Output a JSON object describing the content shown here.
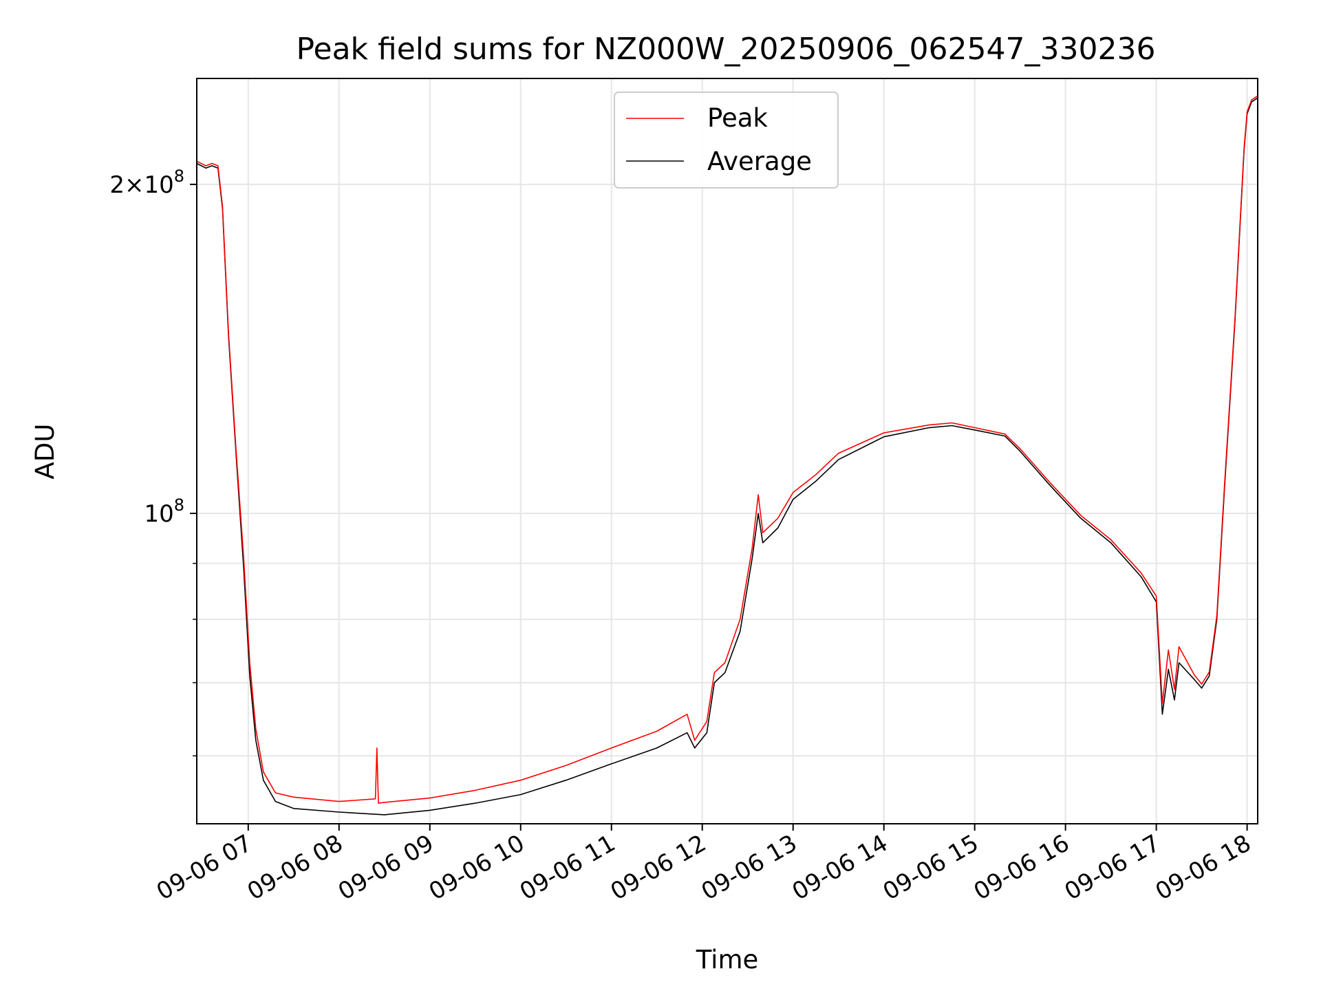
{
  "chart_data": {
    "type": "line",
    "title": "Peak field sums for NZ000W_20250906_062547_330236",
    "xlabel": "Time",
    "ylabel": "ADU",
    "y_scale": "log",
    "ylim": [
      52000000,
      250000000
    ],
    "xlim": [
      "2025-09-06 06:26",
      "2025-09-06 18:07"
    ],
    "grid": true,
    "legend_position": "upper center",
    "x_ticks": [
      {
        "t": "2025-09-06 07:00",
        "label": "09-06 07"
      },
      {
        "t": "2025-09-06 08:00",
        "label": "09-06 08"
      },
      {
        "t": "2025-09-06 09:00",
        "label": "09-06 09"
      },
      {
        "t": "2025-09-06 10:00",
        "label": "09-06 10"
      },
      {
        "t": "2025-09-06 11:00",
        "label": "09-06 11"
      },
      {
        "t": "2025-09-06 12:00",
        "label": "09-06 12"
      },
      {
        "t": "2025-09-06 13:00",
        "label": "09-06 13"
      },
      {
        "t": "2025-09-06 14:00",
        "label": "09-06 14"
      },
      {
        "t": "2025-09-06 15:00",
        "label": "09-06 15"
      },
      {
        "t": "2025-09-06 16:00",
        "label": "09-06 16"
      },
      {
        "t": "2025-09-06 17:00",
        "label": "09-06 17"
      },
      {
        "t": "2025-09-06 18:00",
        "label": "09-06 18"
      }
    ],
    "y_major_ticks": [
      {
        "value": 100000000,
        "label": "10",
        "exp": "8"
      },
      {
        "value": 200000000,
        "label": "2×10",
        "exp": "8"
      }
    ],
    "y_minor_gridlines": [
      60000000,
      70000000,
      80000000,
      90000000
    ],
    "series": [
      {
        "name": "Average",
        "color": "#000000",
        "points": [
          [
            "2025-09-06 06:26",
            209000000
          ],
          [
            "2025-09-06 06:32",
            207000000
          ],
          [
            "2025-09-06 06:36",
            208000000
          ],
          [
            "2025-09-06 06:40",
            207000000
          ],
          [
            "2025-09-06 06:43",
            190000000
          ],
          [
            "2025-09-06 06:47",
            145000000
          ],
          [
            "2025-09-06 06:52",
            113000000
          ],
          [
            "2025-09-06 06:57",
            89000000
          ],
          [
            "2025-09-06 07:01",
            71000000
          ],
          [
            "2025-09-06 07:05",
            62000000
          ],
          [
            "2025-09-06 07:10",
            57000000
          ],
          [
            "2025-09-06 07:18",
            54500000
          ],
          [
            "2025-09-06 07:30",
            53700000
          ],
          [
            "2025-09-06 08:00",
            53300000
          ],
          [
            "2025-09-06 08:30",
            53000000
          ],
          [
            "2025-09-06 09:00",
            53500000
          ],
          [
            "2025-09-06 09:30",
            54300000
          ],
          [
            "2025-09-06 10:00",
            55300000
          ],
          [
            "2025-09-06 10:30",
            57000000
          ],
          [
            "2025-09-06 11:00",
            59000000
          ],
          [
            "2025-09-06 11:30",
            61000000
          ],
          [
            "2025-09-06 11:50",
            63000000
          ],
          [
            "2025-09-06 11:55",
            61000000
          ],
          [
            "2025-09-06 12:03",
            63000000
          ],
          [
            "2025-09-06 12:08",
            70000000
          ],
          [
            "2025-09-06 12:15",
            71500000
          ],
          [
            "2025-09-06 12:25",
            78000000
          ],
          [
            "2025-09-06 12:33",
            91000000
          ],
          [
            "2025-09-06 12:37",
            100000000
          ],
          [
            "2025-09-06 12:40",
            94000000
          ],
          [
            "2025-09-06 12:50",
            97000000
          ],
          [
            "2025-09-06 13:00",
            103000000
          ],
          [
            "2025-09-06 13:15",
            107000000
          ],
          [
            "2025-09-06 13:30",
            112000000
          ],
          [
            "2025-09-06 14:00",
            117500000
          ],
          [
            "2025-09-06 14:30",
            119800000
          ],
          [
            "2025-09-06 14:45",
            120300000
          ],
          [
            "2025-09-06 15:00",
            119200000
          ],
          [
            "2025-09-06 15:20",
            117700000
          ],
          [
            "2025-09-06 15:30",
            114000000
          ],
          [
            "2025-09-06 15:50",
            106000000
          ],
          [
            "2025-09-06 16:10",
            99000000
          ],
          [
            "2025-09-06 16:30",
            94000000
          ],
          [
            "2025-09-06 16:50",
            87500000
          ],
          [
            "2025-09-06 17:00",
            83000000
          ],
          [
            "2025-09-06 17:04",
            65500000
          ],
          [
            "2025-09-06 17:08",
            72000000
          ],
          [
            "2025-09-06 17:12",
            67500000
          ],
          [
            "2025-09-06 17:15",
            73000000
          ],
          [
            "2025-09-06 17:25",
            70500000
          ],
          [
            "2025-09-06 17:30",
            69200000
          ],
          [
            "2025-09-06 17:35",
            71000000
          ],
          [
            "2025-09-06 17:40",
            80000000
          ],
          [
            "2025-09-06 17:45",
            105000000
          ],
          [
            "2025-09-06 17:52",
            150000000
          ],
          [
            "2025-09-06 17:58",
            215000000
          ],
          [
            "2025-09-06 18:00",
            232000000
          ],
          [
            "2025-09-06 18:03",
            238000000
          ],
          [
            "2025-09-06 18:07",
            240000000
          ]
        ]
      },
      {
        "name": "Peak",
        "color": "#ff0000",
        "points": [
          [
            "2025-09-06 06:26",
            210000000
          ],
          [
            "2025-09-06 06:32",
            208000000
          ],
          [
            "2025-09-06 06:36",
            209000000
          ],
          [
            "2025-09-06 06:40",
            208000000
          ],
          [
            "2025-09-06 06:43",
            191000000
          ],
          [
            "2025-09-06 06:47",
            146000000
          ],
          [
            "2025-09-06 06:52",
            114000000
          ],
          [
            "2025-09-06 06:57",
            91000000
          ],
          [
            "2025-09-06 07:01",
            73000000
          ],
          [
            "2025-09-06 07:05",
            63500000
          ],
          [
            "2025-09-06 07:10",
            58000000
          ],
          [
            "2025-09-06 07:18",
            55500000
          ],
          [
            "2025-09-06 07:30",
            55000000
          ],
          [
            "2025-09-06 08:00",
            54500000
          ],
          [
            "2025-09-06 08:24",
            54800000
          ],
          [
            "2025-09-06 08:25",
            61000000
          ],
          [
            "2025-09-06 08:26",
            54300000
          ],
          [
            "2025-09-06 08:30",
            54400000
          ],
          [
            "2025-09-06 09:00",
            54900000
          ],
          [
            "2025-09-06 09:30",
            55800000
          ],
          [
            "2025-09-06 10:00",
            57000000
          ],
          [
            "2025-09-06 10:30",
            58800000
          ],
          [
            "2025-09-06 11:00",
            61000000
          ],
          [
            "2025-09-06 11:30",
            63200000
          ],
          [
            "2025-09-06 11:50",
            65500000
          ],
          [
            "2025-09-06 11:55",
            62000000
          ],
          [
            "2025-09-06 12:03",
            64500000
          ],
          [
            "2025-09-06 12:08",
            71500000
          ],
          [
            "2025-09-06 12:15",
            73000000
          ],
          [
            "2025-09-06 12:25",
            80000000
          ],
          [
            "2025-09-06 12:33",
            93000000
          ],
          [
            "2025-09-06 12:37",
            104000000
          ],
          [
            "2025-09-06 12:40",
            96000000
          ],
          [
            "2025-09-06 12:50",
            99000000
          ],
          [
            "2025-09-06 13:00",
            104500000
          ],
          [
            "2025-09-06 13:15",
            108500000
          ],
          [
            "2025-09-06 13:30",
            113500000
          ],
          [
            "2025-09-06 14:00",
            118500000
          ],
          [
            "2025-09-06 14:30",
            120500000
          ],
          [
            "2025-09-06 14:45",
            121000000
          ],
          [
            "2025-09-06 15:00",
            119800000
          ],
          [
            "2025-09-06 15:20",
            118200000
          ],
          [
            "2025-09-06 15:30",
            114600000
          ],
          [
            "2025-09-06 15:50",
            106600000
          ],
          [
            "2025-09-06 16:10",
            99600000
          ],
          [
            "2025-09-06 16:30",
            94600000
          ],
          [
            "2025-09-06 16:50",
            88200000
          ],
          [
            "2025-09-06 17:00",
            84000000
          ],
          [
            "2025-09-06 17:04",
            67000000
          ],
          [
            "2025-09-06 17:08",
            75000000
          ],
          [
            "2025-09-06 17:12",
            69000000
          ],
          [
            "2025-09-06 17:15",
            75500000
          ],
          [
            "2025-09-06 17:25",
            71200000
          ],
          [
            "2025-09-06 17:30",
            69800000
          ],
          [
            "2025-09-06 17:35",
            71600000
          ],
          [
            "2025-09-06 17:40",
            80600000
          ],
          [
            "2025-09-06 17:45",
            105800000
          ],
          [
            "2025-09-06 17:52",
            151000000
          ],
          [
            "2025-09-06 17:58",
            216000000
          ],
          [
            "2025-09-06 18:00",
            233000000
          ],
          [
            "2025-09-06 18:03",
            239000000
          ],
          [
            "2025-09-06 18:07",
            241000000
          ]
        ]
      }
    ]
  }
}
